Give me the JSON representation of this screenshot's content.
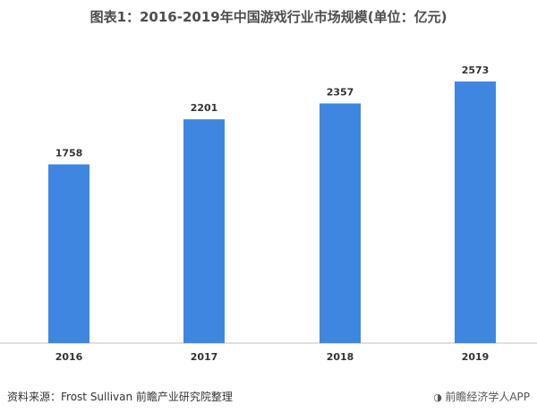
{
  "chart_data": {
    "type": "bar",
    "title": "图表1：2016-2019年中国游戏行业市场规模(单位：亿元)",
    "categories": [
      "2016",
      "2017",
      "2018",
      "2019"
    ],
    "values": [
      1758,
      2201,
      2357,
      2573
    ],
    "ylim": [
      0,
      2800
    ],
    "grid": false,
    "bar_color": "#3f86e0",
    "xlabel": "",
    "ylabel": ""
  },
  "source": "资料来源：Frost Sullivan  前瞻产业研究院整理",
  "brand": "前瞻经济学人APP",
  "colors": {
    "bar": "#3f86e0",
    "axis": "#bfbfbf",
    "text": "#333333"
  }
}
